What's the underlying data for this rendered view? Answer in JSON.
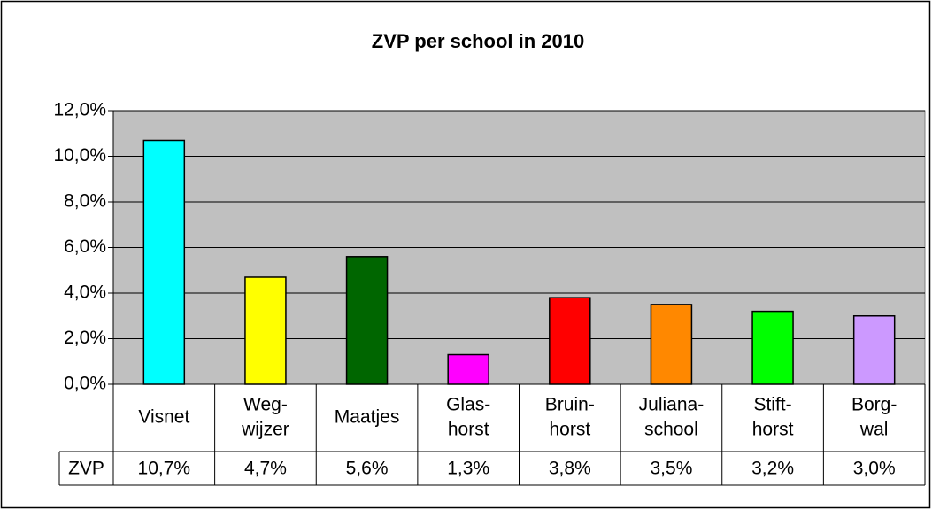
{
  "chart_data": {
    "type": "bar",
    "title": "ZVP per school in 2010",
    "categories": [
      [
        "Visnet"
      ],
      [
        "Weg-",
        "wijzer"
      ],
      [
        "Maatjes"
      ],
      [
        "Glas-",
        "horst"
      ],
      [
        "Bruin-",
        "horst"
      ],
      [
        "Juliana-",
        "school"
      ],
      [
        "Stift-",
        "horst"
      ],
      [
        "Borg-",
        "wal"
      ]
    ],
    "series": [
      {
        "name": "ZVP",
        "colors": [
          "#00ffff",
          "#ffff00",
          "#006600",
          "#ff00ff",
          "#ff0000",
          "#ff8800",
          "#00ff00",
          "#cc99ff"
        ],
        "values": [
          10.7,
          4.7,
          5.6,
          1.3,
          3.8,
          3.5,
          3.2,
          3.0
        ],
        "value_labels": [
          "10,7%",
          "4,7%",
          "5,6%",
          "1,3%",
          "3,8%",
          "3,5%",
          "3,2%",
          "3,0%"
        ]
      }
    ],
    "ylim": [
      0,
      12
    ],
    "yticks": [
      {
        "value": 0,
        "label": "0,0%"
      },
      {
        "value": 2,
        "label": "2,0%"
      },
      {
        "value": 4,
        "label": "4,0%"
      },
      {
        "value": 6,
        "label": "6,0%"
      },
      {
        "value": 8,
        "label": "8,0%"
      },
      {
        "value": 10,
        "label": "10,0%"
      },
      {
        "value": 12,
        "label": "12,0%"
      }
    ],
    "grid": true,
    "plot_background": "#c0c0c0"
  }
}
